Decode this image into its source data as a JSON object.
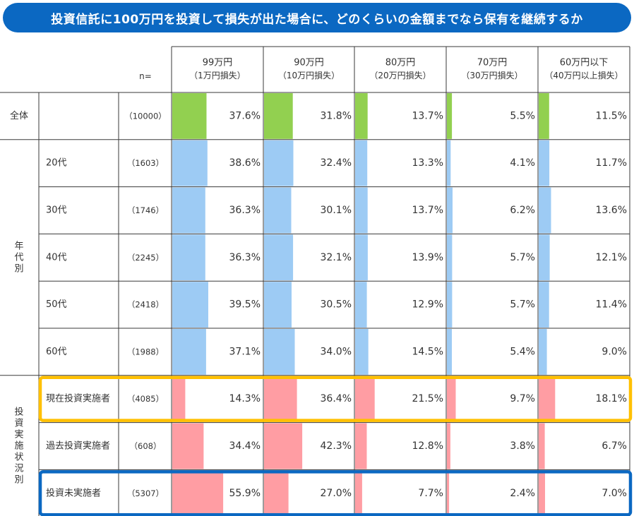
{
  "title": "投資信託に100万円を投資して損失が出た場合に、どのくらいの金額までなら保有を継続するか",
  "colors": {
    "title_bg": "#0b68c2",
    "overall": "#92d050",
    "age": "#9dcbf4",
    "status": "#ff9da3",
    "highlight_orange": "#ffc000",
    "highlight_blue": "#0b68c2",
    "grid": "#3a3a3a"
  },
  "chart_data": {
    "type": "table",
    "n_header": "n=",
    "columns": [
      {
        "line1": "99万円",
        "line2": "（1万円損失）"
      },
      {
        "line1": "90万円",
        "line2": "（10万円損失）"
      },
      {
        "line1": "80万円",
        "line2": "（20万円損失）"
      },
      {
        "line1": "70万円",
        "line2": "（30万円損失）"
      },
      {
        "line1": "60万円以下",
        "line2": "（40万円以上損失）"
      }
    ],
    "groups": [
      {
        "label": "",
        "color_key": "overall",
        "rows": [
          {
            "label": "全体",
            "n": "（10000）",
            "values": [
              37.6,
              31.8,
              13.7,
              5.5,
              11.5
            ]
          }
        ]
      },
      {
        "label": "年代別",
        "color_key": "age",
        "rows": [
          {
            "label": "20代",
            "n": "（1603）",
            "values": [
              38.6,
              32.4,
              13.3,
              4.1,
              11.7
            ]
          },
          {
            "label": "30代",
            "n": "（1746）",
            "values": [
              36.3,
              30.1,
              13.7,
              6.2,
              13.6
            ]
          },
          {
            "label": "40代",
            "n": "（2245）",
            "values": [
              36.3,
              32.1,
              13.9,
              5.7,
              12.1
            ]
          },
          {
            "label": "50代",
            "n": "（2418）",
            "values": [
              39.5,
              30.5,
              12.9,
              5.7,
              11.4
            ]
          },
          {
            "label": "60代",
            "n": "（1988）",
            "values": [
              37.1,
              34.0,
              14.5,
              5.4,
              9.0
            ]
          }
        ]
      },
      {
        "label": "投資実施状況別",
        "color_key": "status",
        "rows": [
          {
            "label": "現在投資実施者",
            "n": "（4085）",
            "values": [
              14.3,
              36.4,
              21.5,
              9.7,
              18.1
            ],
            "highlight": "orange"
          },
          {
            "label": "過去投資実施者",
            "n": "（608）",
            "values": [
              34.4,
              42.3,
              12.8,
              3.8,
              6.7
            ]
          },
          {
            "label": "投資未実施者",
            "n": "（5307）",
            "values": [
              55.9,
              27.0,
              7.7,
              2.4,
              7.0
            ],
            "highlight": "blue"
          }
        ]
      }
    ],
    "value_suffix": "%",
    "bar_max_percent": 100
  }
}
